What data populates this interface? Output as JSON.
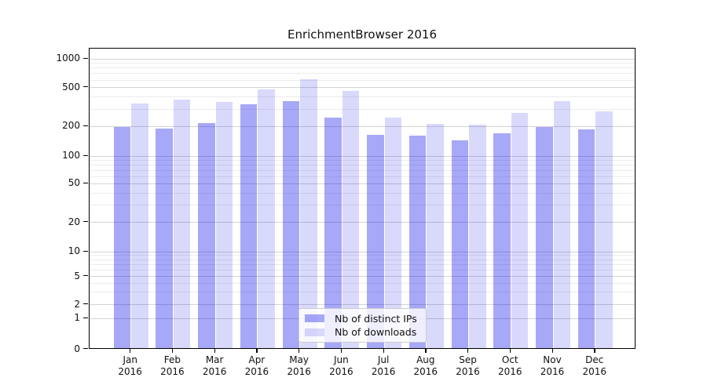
{
  "chart_data": {
    "type": "bar",
    "title": "EnrichmentBrowser 2016",
    "categories": [
      "Jan 2016",
      "Feb 2016",
      "Mar 2016",
      "Apr 2016",
      "May 2016",
      "Jun 2016",
      "Jul 2016",
      "Aug 2016",
      "Sep 2016",
      "Oct 2016",
      "Nov 2016",
      "Dec 2016"
    ],
    "month_labels": [
      "Jan",
      "Feb",
      "Mar",
      "Apr",
      "May",
      "Jun",
      "Jul",
      "Aug",
      "Sep",
      "Oct",
      "Nov",
      "Dec"
    ],
    "year_label": "2016",
    "series": [
      {
        "name": "Nb of distinct IPs",
        "color": "rgba(0,0,235,0.34)",
        "color_hex_on_white": "#a8a8f8",
        "values": [
          197,
          190,
          215,
          338,
          360,
          245,
          165,
          162,
          145,
          170,
          197,
          188
        ]
      },
      {
        "name": "Nb of downloads",
        "color": "rgba(0,0,235,0.15)",
        "color_hex_on_white": "#d9d9fb",
        "values": [
          343,
          376,
          354,
          477,
          612,
          458,
          247,
          213,
          209,
          273,
          365,
          286
        ]
      }
    ],
    "xlabel": "",
    "ylabel": "",
    "y_axis": {
      "scale": "log-like with 1-2-5 tick sequence, 0 baseline",
      "tick_values": [
        0,
        1,
        2,
        5,
        10,
        20,
        50,
        100,
        200,
        500,
        1000
      ],
      "tick_labels": [
        "0",
        "1",
        "2",
        "5",
        "10",
        "20",
        "50",
        "100",
        "200",
        "500",
        "1000"
      ]
    },
    "ylim": [
      0,
      1000
    ],
    "grid": {
      "horizontal_major": true,
      "horizontal_minor": true,
      "vertical": false,
      "minor_values": [
        3,
        4,
        6,
        7,
        8,
        9,
        30,
        40,
        60,
        70,
        80,
        90,
        300,
        400,
        600,
        700,
        800,
        900
      ]
    },
    "legend": {
      "position": "inside plot, lower center",
      "entries": [
        "Nb of distinct IPs",
        "Nb of downloads"
      ]
    }
  },
  "colors": {
    "background": "#ffffff",
    "axis": "#000000",
    "text": "#111111",
    "grid_major": "#d4d4d4",
    "grid_minor": "#ececec"
  }
}
